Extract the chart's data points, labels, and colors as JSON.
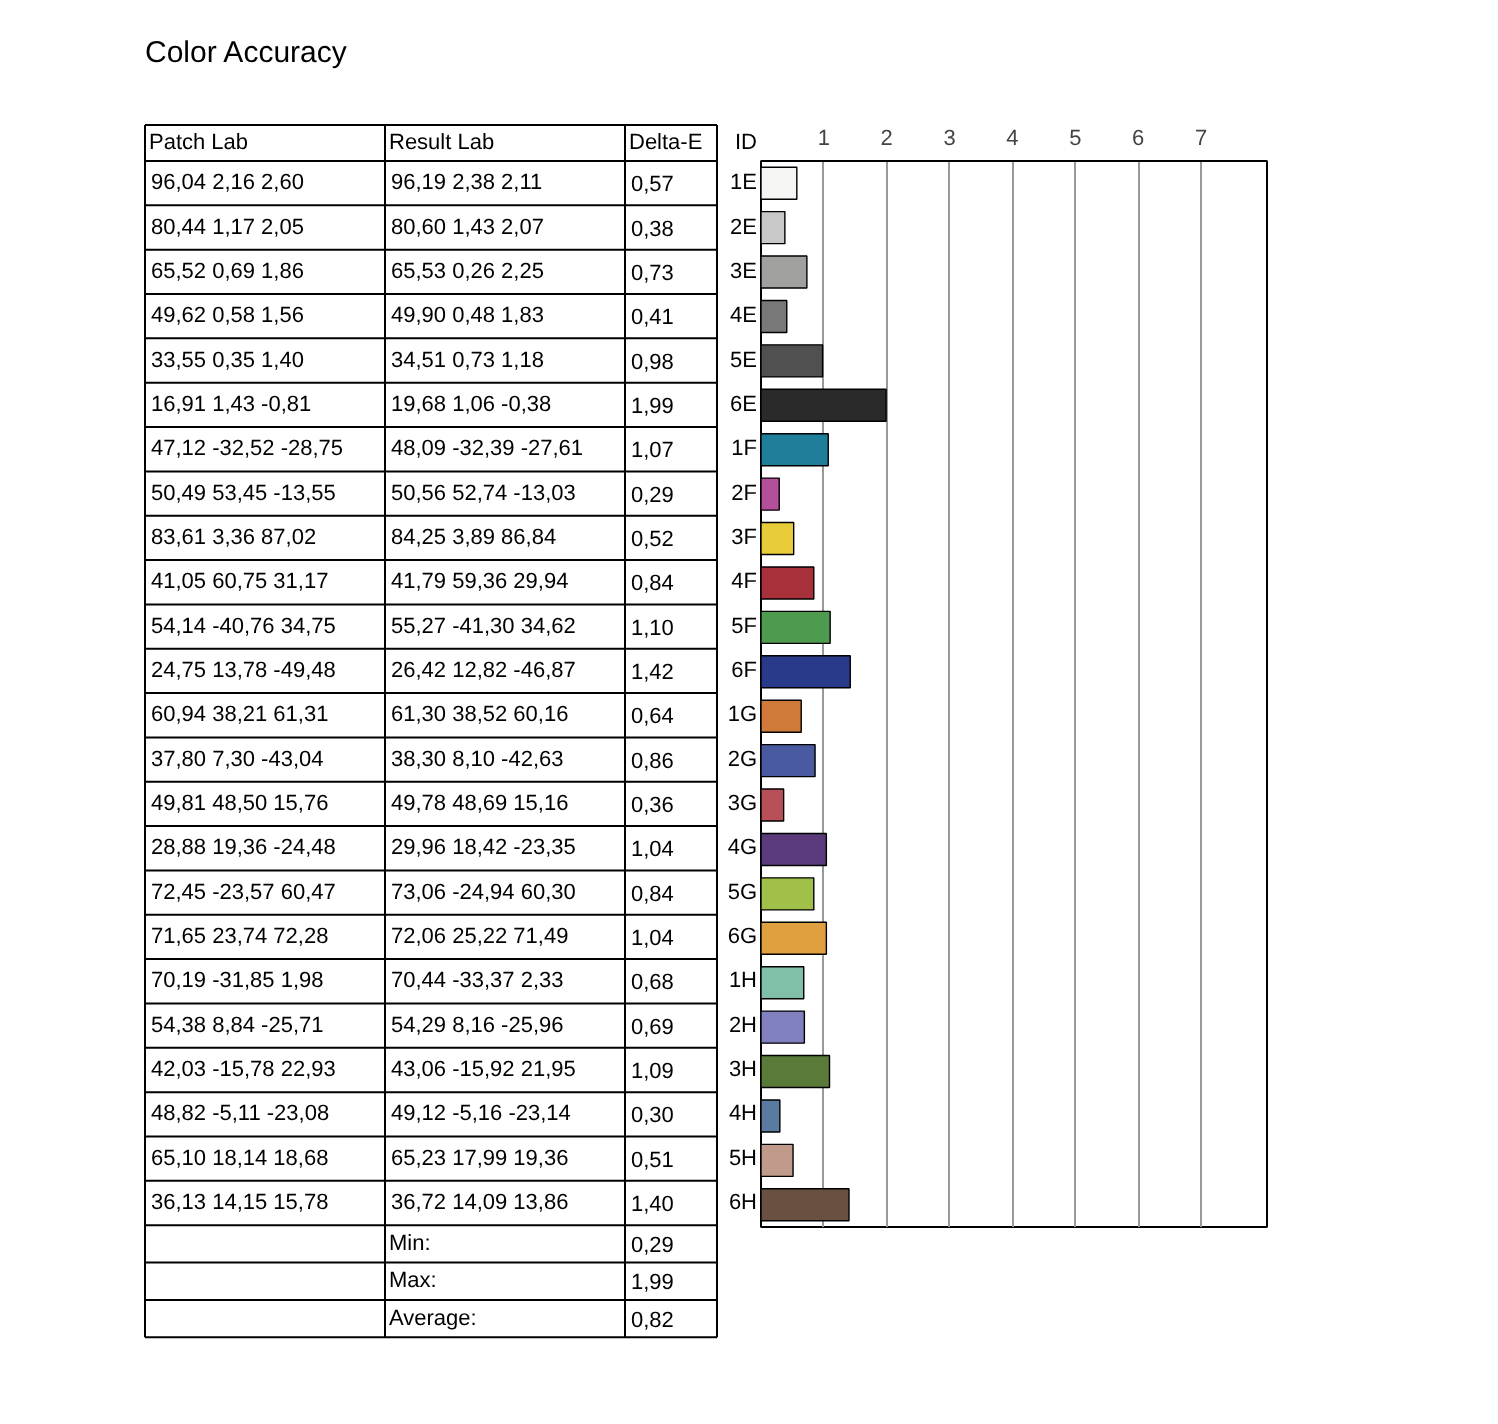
{
  "chart_data": {
    "type": "bar",
    "title": "Color Accuracy",
    "orientation": "horizontal",
    "categories": [
      "1E",
      "2E",
      "3E",
      "4E",
      "5E",
      "6E",
      "1F",
      "2F",
      "3F",
      "4F",
      "5F",
      "6F",
      "1G",
      "2G",
      "3G",
      "4G",
      "5G",
      "6G",
      "1H",
      "2H",
      "3H",
      "4H",
      "5H",
      "6H"
    ],
    "values": [
      0.57,
      0.38,
      0.73,
      0.41,
      0.98,
      1.99,
      1.07,
      0.29,
      0.52,
      0.84,
      1.1,
      1.42,
      0.64,
      0.86,
      0.36,
      1.04,
      0.84,
      1.04,
      0.68,
      0.69,
      1.09,
      0.3,
      0.51,
      1.4
    ],
    "value_labels": [
      "0,57",
      "0,38",
      "0,73",
      "0,41",
      "0,98",
      "1,99",
      "1,07",
      "0,29",
      "0,52",
      "0,84",
      "1,10",
      "1,42",
      "0,64",
      "0,86",
      "0,36",
      "1,04",
      "0,84",
      "1,04",
      "0,68",
      "0,69",
      "1,09",
      "0,30",
      "0,51",
      "1,40"
    ],
    "colors": [
      "#f5f5f3",
      "#c8c8c8",
      "#a0a09e",
      "#787878",
      "#505050",
      "#2a2a2a",
      "#1f7f9a",
      "#b4509a",
      "#e8cc3a",
      "#a8303a",
      "#4e9a4e",
      "#2a3a8a",
      "#d07a3a",
      "#4a5aa0",
      "#b8505a",
      "#5a3a7a",
      "#a0c04a",
      "#e0a040",
      "#80c0a8",
      "#8080c0",
      "#5a7a3a",
      "#5a7aa0",
      "#c09a8a",
      "#6a5040"
    ],
    "x2lim": [
      0,
      8.05
    ],
    "x2ticks": [
      1,
      2,
      3,
      4,
      5,
      6,
      7
    ],
    "grid": "x",
    "annotations": [
      "ID",
      "Patch Lab",
      "Result Lab",
      "Delta-E",
      "96,04  2,16  2,60",
      "96,19  2,38  2,11",
      "80,44  1,17  2,05",
      "80,60  1,43  2,07",
      "65,52  0,69  1,86",
      "65,53  0,26  2,25",
      "49,62  0,58  1,56",
      "49,90  0,48  1,83",
      "33,55  0,35  1,40",
      "34,51  0,73  1,18",
      "16,91  1,43  -0,81",
      "19,68  1,06  -0,38",
      "47,12 -32,52 -28,75",
      "48,09 -32,39 -27,61",
      "50,49 53,45 -13,55",
      "50,56 52,74 -13,03",
      "83,61  3,36 87,02",
      "84,25  3,89 86,84",
      "41,05 60,75 31,17",
      "41,79 59,36 29,94",
      "54,14 -40,76 34,75",
      "55,27 -41,30 34,62",
      "24,75 13,78 -49,48",
      "26,42 12,82 -46,87",
      "60,94 38,21 61,31",
      "61,30 38,52 60,16",
      "37,80  7,30 -43,04",
      "38,30  8,10 -42,63",
      "49,81 48,50 15,76",
      "49,78 48,69 15,16",
      "28,88 19,36 -24,48",
      "29,96 18,42 -23,35",
      "72,45 -23,57 60,47",
      "73,06 -24,94 60,30",
      "71,65 23,74 72,28",
      "72,06 25,22 71,49",
      "70,19 -31,85  1,98",
      "70,44 -33,37  2,33",
      "54,38  8,84 -25,71",
      "54,29  8,16 -25,96",
      "42,03 -15,78 22,93",
      "43,06 -15,92 21,95",
      "48,82 -5,11 -23,08",
      "49,12 -5,16 -23,14",
      "65,10 18,14 18,68",
      "65,23 17,99 19,36",
      "36,13 14,15 15,78",
      "36,72 14,09 13,86",
      "Min:",
      "0,29",
      "Max:",
      "1,99",
      "Average:",
      "0,82"
    ]
  }
}
